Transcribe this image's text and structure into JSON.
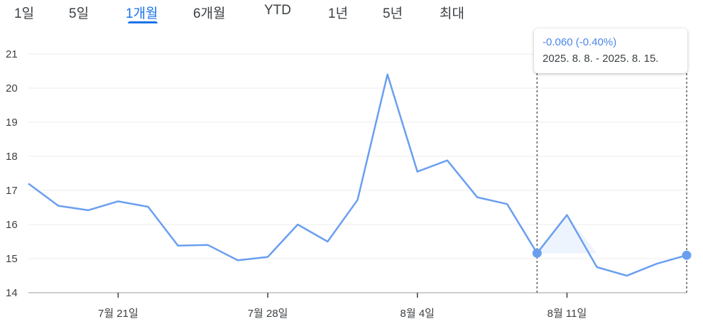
{
  "tabs": [
    {
      "label": "1일",
      "active": false
    },
    {
      "label": "5일",
      "active": false
    },
    {
      "label": "1개월",
      "active": true
    },
    {
      "label": "6개월",
      "active": false
    },
    {
      "label": "YTD",
      "active": false
    },
    {
      "label": "1년",
      "active": false
    },
    {
      "label": "5년",
      "active": false
    },
    {
      "label": "최대",
      "active": false
    }
  ],
  "tooltip": {
    "change": "-0.060 (-0.40%)",
    "range": "2025. 8. 8. - 2025. 8. 15."
  },
  "colors": {
    "line": "#6a9ff0",
    "accent": "#1a73e8",
    "selection_fill": "#eef4fd"
  },
  "chart_data": {
    "type": "line",
    "x": [
      "2025-07-16",
      "2025-07-17",
      "2025-07-18",
      "2025-07-21",
      "2025-07-22",
      "2025-07-23",
      "2025-07-24",
      "2025-07-25",
      "2025-07-28",
      "2025-07-29",
      "2025-07-30",
      "2025-07-31",
      "2025-08-01",
      "2025-08-04",
      "2025-08-05",
      "2025-08-06",
      "2025-08-07",
      "2025-08-08",
      "2025-08-11",
      "2025-08-12",
      "2025-08-13",
      "2025-08-14",
      "2025-08-15"
    ],
    "values": [
      17.2,
      16.55,
      16.42,
      16.68,
      16.52,
      15.38,
      15.4,
      14.95,
      15.05,
      16.0,
      15.5,
      16.72,
      20.4,
      17.55,
      17.88,
      16.8,
      16.6,
      15.16,
      16.28,
      14.75,
      14.5,
      14.85,
      15.1
    ],
    "ylim": [
      14,
      21
    ],
    "yticks": [
      "14",
      "15",
      "16",
      "17",
      "18",
      "19",
      "20",
      "21"
    ],
    "xtick_labels": [
      "7월 21일",
      "7월 28일",
      "8월 4일",
      "8월 11일"
    ],
    "xtick_index": [
      3,
      8,
      13,
      18
    ],
    "selection": {
      "start_index": 17,
      "end_index": 22
    },
    "grid": true
  }
}
